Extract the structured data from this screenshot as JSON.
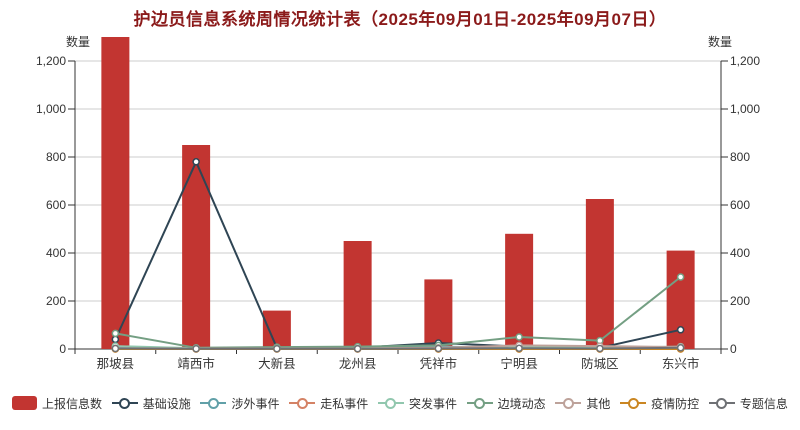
{
  "title": "护边员信息系统周情况统计表（2025年09月01日-2025年09月07日）",
  "axis": {
    "left_name": "数量",
    "right_name": "数量"
  },
  "colors": {
    "title": "#8b1a1a",
    "axis_line": "#333333",
    "grid_line": "#cccccc",
    "tick_label": "#333333",
    "background": "#ffffff"
  },
  "chart_data": {
    "type": "bar",
    "title": "护边员信息系统周情况统计表（2025年09月01日-2025年09月07日）",
    "categories": [
      "那坡县",
      "靖西市",
      "大新县",
      "龙州县",
      "凭祥市",
      "宁明县",
      "防城区",
      "东兴市"
    ],
    "series": [
      {
        "name": "上报信息数",
        "type": "bar",
        "color": "#c23531",
        "values": [
          1300,
          850,
          160,
          450,
          290,
          480,
          625,
          410
        ]
      },
      {
        "name": "基础设施",
        "type": "line",
        "color": "#2f4554",
        "values": [
          40,
          780,
          5,
          5,
          25,
          10,
          5,
          80
        ]
      },
      {
        "name": "涉外事件",
        "type": "line",
        "color": "#61a0a8",
        "values": [
          8,
          3,
          3,
          2,
          10,
          5,
          3,
          6
        ]
      },
      {
        "name": "走私事件",
        "type": "line",
        "color": "#d48265",
        "values": [
          0,
          0,
          0,
          0,
          0,
          0,
          0,
          0
        ]
      },
      {
        "name": "突发事件",
        "type": "line",
        "color": "#91c7ae",
        "values": [
          12,
          3,
          6,
          3,
          5,
          8,
          5,
          10
        ]
      },
      {
        "name": "边境动态",
        "type": "line",
        "color": "#749f83",
        "values": [
          65,
          5,
          8,
          10,
          15,
          50,
          35,
          300
        ]
      },
      {
        "name": "其他",
        "type": "line",
        "color": "#bda29a",
        "values": [
          3,
          2,
          2,
          2,
          5,
          15,
          12,
          8
        ]
      },
      {
        "name": "疫情防控",
        "type": "line",
        "color": "#ca8622",
        "values": [
          0,
          0,
          0,
          0,
          0,
          0,
          0,
          0
        ]
      },
      {
        "name": "专题信息",
        "type": "line",
        "color": "#6e7074",
        "values": [
          2,
          1,
          1,
          1,
          2,
          3,
          2,
          5
        ]
      }
    ],
    "xlabel": "",
    "ylabel": "数量",
    "ylabel_right": "数量",
    "ylim": [
      0,
      1200
    ],
    "yticks": [
      0,
      200,
      400,
      600,
      800,
      1000,
      1200
    ],
    "grid": true,
    "dual_axis": true,
    "legend_position": "bottom"
  }
}
